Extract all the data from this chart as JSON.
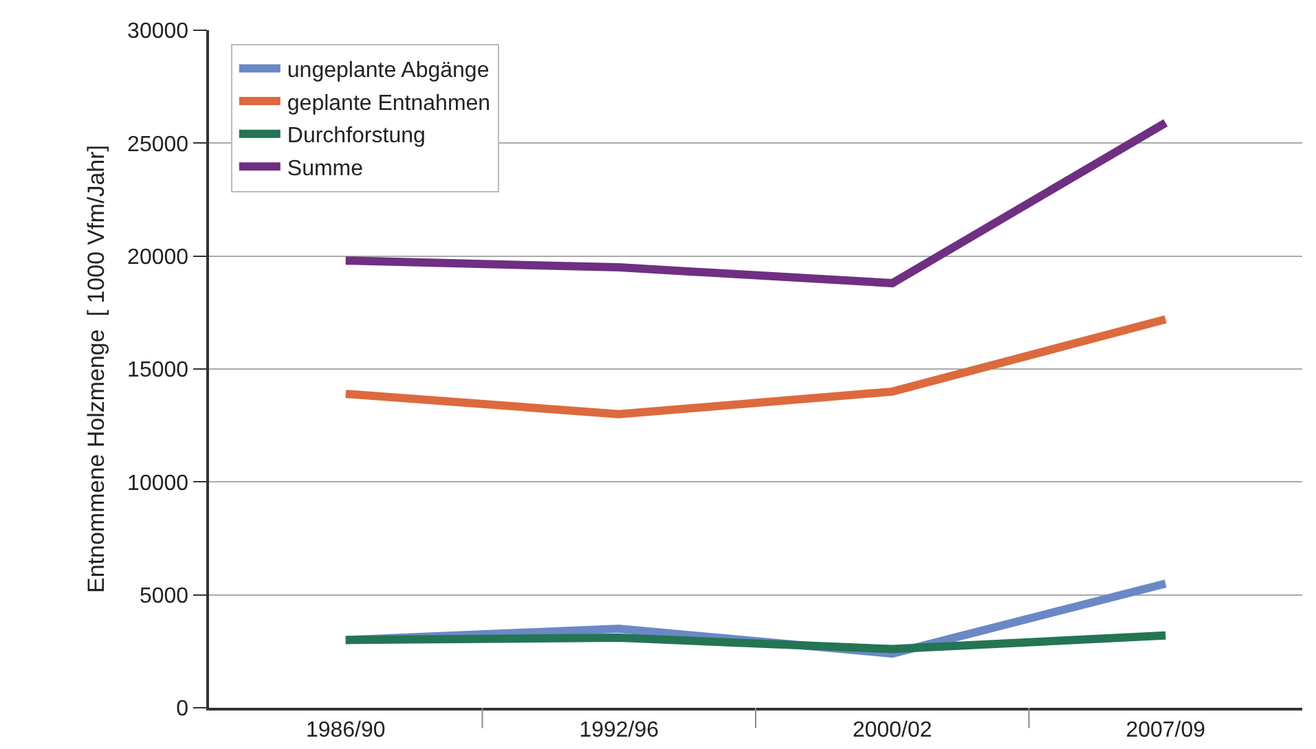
{
  "chart_data": {
    "type": "line",
    "ylabel": "Entnommene Holzmenge  [ 1000 Vfm/Jahr]",
    "categories": [
      "1986/90",
      "1992/96",
      "2000/02",
      "2007/09"
    ],
    "series": [
      {
        "name": "ungeplante Abgänge",
        "color": "#6b88c6",
        "values": [
          3000,
          3500,
          2400,
          5500
        ]
      },
      {
        "name": "geplante Entnahmen",
        "color": "#dc6a3e",
        "values": [
          13900,
          13000,
          14000,
          17200
        ]
      },
      {
        "name": "Durchforstung",
        "color": "#237553",
        "values": [
          3000,
          3100,
          2600,
          3200
        ]
      },
      {
        "name": "Summe",
        "color": "#6f2f82",
        "values": [
          19800,
          19500,
          18800,
          25900
        ]
      }
    ],
    "ylim": [
      0,
      30000
    ],
    "yticks": [
      0,
      5000,
      10000,
      15000,
      20000,
      25000,
      30000
    ],
    "grid": "y",
    "legend": "top left",
    "line_style": "solid",
    "marker": "none"
  }
}
